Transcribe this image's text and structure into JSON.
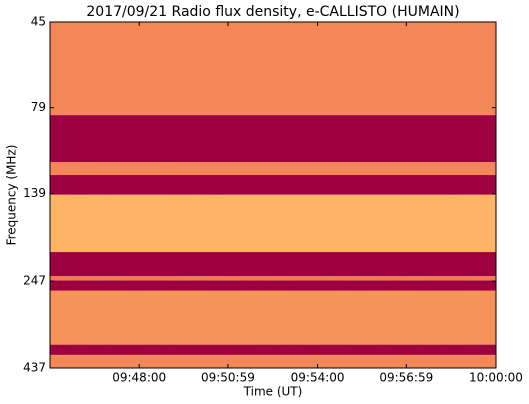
{
  "chart_data": {
    "type": "spectrogram",
    "title": "2017/09/21  Radio flux density, e-CALLISTO (HUMAIN)",
    "xlabel": "Time (UT)",
    "ylabel": "Frequency (MHz)",
    "xlim": [
      "09:45:00",
      "10:00:00"
    ],
    "xticks": [
      "09:48:00",
      "09:50:59",
      "09:54:00",
      "09:56:59",
      "10:00:00"
    ],
    "ylim": [
      45,
      437
    ],
    "ylog": true,
    "yinverted": true,
    "yticks": [
      45,
      79,
      139,
      247,
      437
    ],
    "colormap": [
      "#fee89a",
      "#fdae61",
      "#e8604c",
      "#9e0142"
    ],
    "bands": {
      "edges": [
        45,
        83,
        113,
        123,
        140,
        204,
        239,
        246,
        263,
        375,
        401,
        437
      ],
      "levels": [
        0.5,
        1,
        0.5,
        1,
        0.3,
        1,
        0.55,
        1,
        0.45,
        1,
        0.5
      ]
    }
  }
}
